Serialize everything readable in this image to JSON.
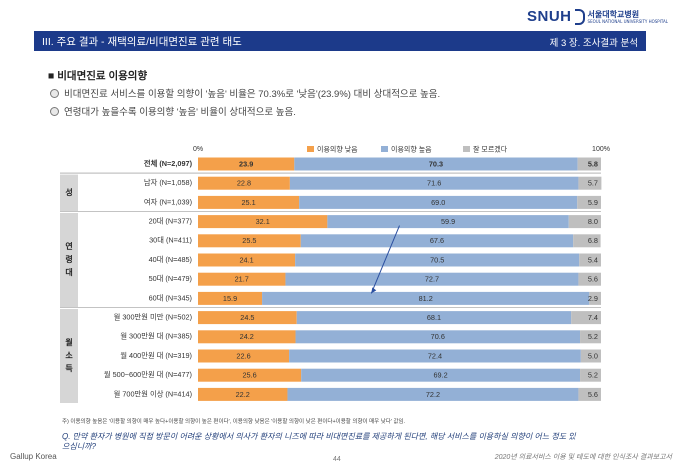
{
  "logo": {
    "snu": "SNUH",
    "kr": "서울대학교병원",
    "en": "SEOUL NATIONAL UNIVERSITY HOSPITAL"
  },
  "header": {
    "left": "III. 주요 결과 -  재택의료/비대면진료 관련 태도",
    "right": "제 3 장. 조사결과 분석"
  },
  "section_title": "■ 비대면진료 이용의향",
  "bullets": [
    "비대면진료 서비스를 이용할 의향이 '높음' 비율은 70.3%로 '낮음'(23.9%) 대비 상대적으로 높음.",
    "연령대가 높을수록 이용의향 '높음' 비율이 상대적으로 높음."
  ],
  "chart_data": {
    "type": "bar",
    "stacked": true,
    "orientation": "horizontal",
    "axis": {
      "min_label": "0%",
      "max_label": "100%",
      "xlim": [
        0,
        100
      ]
    },
    "series": [
      {
        "name": "이용의향 낮음",
        "color": "#f4a04a"
      },
      {
        "name": "이용의향 높음",
        "color": "#93b0d6"
      },
      {
        "name": "잘 모르겠다",
        "color": "#bfbfbf"
      }
    ],
    "groups": [
      {
        "label": "",
        "rows": [
          0
        ]
      },
      {
        "label": "성",
        "rows": [
          1,
          2
        ]
      },
      {
        "label": "연령대",
        "rows": [
          3,
          4,
          5,
          6,
          7
        ]
      },
      {
        "label": "월소득",
        "rows": [
          8,
          9,
          10,
          11,
          12
        ]
      }
    ],
    "rows": [
      {
        "label": "전체 (N=2,097)",
        "low": 23.9,
        "high": 70.3,
        "dk": 5.8,
        "bold": true
      },
      {
        "label": "남자 (N=1,058)",
        "low": 22.8,
        "high": 71.6,
        "dk": 5.7
      },
      {
        "label": "여자 (N=1,039)",
        "low": 25.1,
        "high": 69.0,
        "dk": 5.9
      },
      {
        "label": "20대 (N=377)",
        "low": 32.1,
        "high": 59.9,
        "dk": 8.0
      },
      {
        "label": "30대 (N=411)",
        "low": 25.5,
        "high": 67.6,
        "dk": 6.8
      },
      {
        "label": "40대 (N=485)",
        "low": 24.1,
        "high": 70.5,
        "dk": 5.4
      },
      {
        "label": "50대 (N=479)",
        "low": 21.7,
        "high": 72.7,
        "dk": 5.6
      },
      {
        "label": "60대 (N=345)",
        "low": 15.9,
        "high": 81.2,
        "dk": 2.9
      },
      {
        "label": "월 300만원 미만 (N=502)",
        "low": 24.5,
        "high": 68.1,
        "dk": 7.4
      },
      {
        "label": "월 300만원 대 (N=385)",
        "low": 24.2,
        "high": 70.6,
        "dk": 5.2
      },
      {
        "label": "월 400만원 대 (N=319)",
        "low": 22.6,
        "high": 72.4,
        "dk": 5.0
      },
      {
        "label": "월 500~600만원 대 (N=477)",
        "low": 25.6,
        "high": 69.2,
        "dk": 5.2
      },
      {
        "label": "월 700만원 이상 (N=414)",
        "low": 22.2,
        "high": 72.2,
        "dk": 5.6
      }
    ],
    "trend_arrow": {
      "from_row": 3,
      "to_row": 7,
      "description": "arrow indicating increase in 높음 with age"
    }
  },
  "footnote": "주) 이용의향 높음은 '이용할 의향이 매우 높다+이용할 의향이 높은 편이다', 이용의향 낮음은 '이용할 의향이 낮은 편이다+이용할 의향이 매우 낮다' 값임.",
  "question": "Q. 만약 환자가 병원에 직접 방문이 어려운 상황에서 의사가 환자의 니즈에 따라 비대면진료를 제공하게 된다면, 해당 서비스를 이용하실 의향이 어느 정도 있으십니까?",
  "footer": {
    "left": "Gallup Korea",
    "page": "44",
    "right": "2020년 의료서비스 이용 및 태도에 대한 인식조사 결과보고서"
  }
}
